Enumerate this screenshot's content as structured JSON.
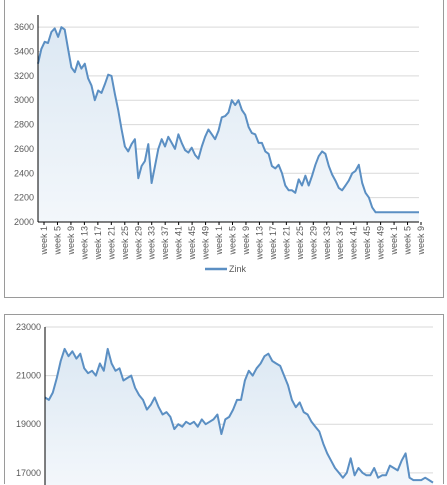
{
  "chart_data": [
    {
      "type": "area",
      "title": "",
      "xlabel": "",
      "ylabel": "",
      "ylim": [
        2000,
        3700
      ],
      "yticks": [
        2000,
        2200,
        2400,
        2600,
        2800,
        3000,
        3200,
        3400,
        3600
      ],
      "xtick_labels": [
        "week 1",
        "week 5",
        "week 9",
        "week 13",
        "week 17",
        "week 21",
        "week 25",
        "week 29",
        "week 33",
        "week 37",
        "week 41",
        "week 45",
        "week 49",
        "week 1",
        "week 5",
        "week 9",
        "week 13",
        "week 17",
        "week 21",
        "week 25",
        "week 29",
        "week 33",
        "week 37",
        "week 41",
        "week 45",
        "week 49",
        "week 1",
        "week 5",
        "week 9"
      ],
      "grid": true,
      "legend_position": "bottom",
      "color": "#5b8fc3",
      "fill": "#dce8f3",
      "series": [
        {
          "name": "Zink",
          "x": [
            0,
            1,
            2,
            3,
            4,
            5,
            6,
            7,
            8,
            9,
            10,
            11,
            12,
            13,
            14,
            15,
            16,
            17,
            18,
            19,
            20,
            21,
            22,
            23,
            24,
            25,
            26,
            27,
            28,
            29,
            30,
            31,
            32,
            33,
            34,
            35,
            36,
            37,
            38,
            39,
            40,
            41,
            42,
            43,
            44,
            45,
            46,
            47,
            48,
            49,
            50,
            51,
            52,
            53,
            54,
            55,
            56,
            57,
            58,
            59,
            60,
            61,
            62,
            63,
            64,
            65,
            66,
            67,
            68,
            69,
            70,
            71,
            72,
            73,
            74,
            75,
            76,
            77,
            78,
            79,
            80,
            81,
            82,
            83,
            84,
            85,
            86,
            87,
            88,
            89,
            90,
            91,
            92,
            93,
            94,
            95,
            96,
            97,
            98,
            99,
            100,
            101,
            102,
            103,
            104,
            105,
            106,
            107,
            108,
            109,
            110,
            111,
            112,
            113,
            114
          ],
          "values": [
            3300,
            3420,
            3480,
            3470,
            3560,
            3590,
            3520,
            3600,
            3580,
            3420,
            3270,
            3230,
            3320,
            3260,
            3300,
            3180,
            3120,
            3000,
            3080,
            3060,
            3130,
            3210,
            3200,
            3050,
            2920,
            2760,
            2620,
            2580,
            2640,
            2680,
            2360,
            2460,
            2500,
            2640,
            2320,
            2460,
            2600,
            2680,
            2620,
            2700,
            2650,
            2600,
            2720,
            2650,
            2590,
            2570,
            2610,
            2550,
            2520,
            2620,
            2700,
            2760,
            2720,
            2680,
            2750,
            2860,
            2870,
            2900,
            3000,
            2960,
            3000,
            2920,
            2880,
            2780,
            2730,
            2720,
            2650,
            2650,
            2580,
            2560,
            2460,
            2440,
            2470,
            2400,
            2300,
            2260,
            2260,
            2240,
            2350,
            2300,
            2380,
            2300,
            2380,
            2470,
            2540,
            2580,
            2560,
            2460,
            2390,
            2340,
            2280,
            2260,
            2300,
            2340,
            2400,
            2420,
            2470,
            2320,
            2240,
            2200,
            2120,
            2080,
            2080,
            2080,
            2080,
            2080,
            2080,
            2080,
            2080,
            2080,
            2080,
            2080,
            2080,
            2080,
            2080
          ]
        }
      ]
    },
    {
      "type": "area",
      "title": "",
      "xlabel": "",
      "ylabel": "",
      "ylim": [
        16500,
        23000
      ],
      "yticks": [
        17000,
        19000,
        21000,
        23000
      ],
      "grid": true,
      "color": "#5b8fc3",
      "fill": "#dce8f3",
      "series": [
        {
          "name": "",
          "x": [
            0,
            1,
            2,
            3,
            4,
            5,
            6,
            7,
            8,
            9,
            10,
            11,
            12,
            13,
            14,
            15,
            16,
            17,
            18,
            19,
            20,
            21,
            22,
            23,
            24,
            25,
            26,
            27,
            28,
            29,
            30,
            31,
            32,
            33,
            34,
            35,
            36,
            37,
            38,
            39,
            40,
            41,
            42,
            43,
            44,
            45,
            46,
            47,
            48,
            49,
            50,
            51,
            52,
            53,
            54,
            55,
            56,
            57,
            58,
            59,
            60,
            61,
            62,
            63,
            64,
            65,
            66,
            67,
            68,
            69,
            70,
            71,
            72,
            73,
            74,
            75,
            76,
            77,
            78,
            79,
            80,
            81,
            82,
            83,
            84,
            85,
            86,
            87,
            88,
            89,
            90,
            91,
            92,
            93,
            94,
            95,
            96,
            97,
            98,
            99
          ],
          "values": [
            20100,
            20000,
            20300,
            20900,
            21600,
            22100,
            21800,
            22000,
            21700,
            21900,
            21300,
            21100,
            21200,
            21000,
            21500,
            21200,
            22100,
            21500,
            21200,
            21300,
            20800,
            20900,
            21000,
            20500,
            20200,
            20000,
            19600,
            19800,
            20100,
            19700,
            19400,
            19500,
            19300,
            18800,
            19000,
            18900,
            19100,
            19000,
            19100,
            18900,
            19200,
            19000,
            19100,
            19200,
            19400,
            18600,
            19200,
            19300,
            19600,
            20000,
            20000,
            20800,
            21200,
            21000,
            21300,
            21500,
            21800,
            21900,
            21600,
            21500,
            21400,
            21000,
            20600,
            20000,
            19700,
            19900,
            19500,
            19400,
            19100,
            18900,
            18700,
            18200,
            17800,
            17500,
            17200,
            17000,
            16800,
            17000,
            17600,
            16900,
            17200,
            17000,
            16900,
            16900,
            17200,
            16800,
            16900,
            16900,
            17300,
            17200,
            17100,
            17500,
            17800,
            16800,
            16700,
            16700,
            16700,
            16800,
            16700,
            16600
          ]
        }
      ]
    }
  ]
}
